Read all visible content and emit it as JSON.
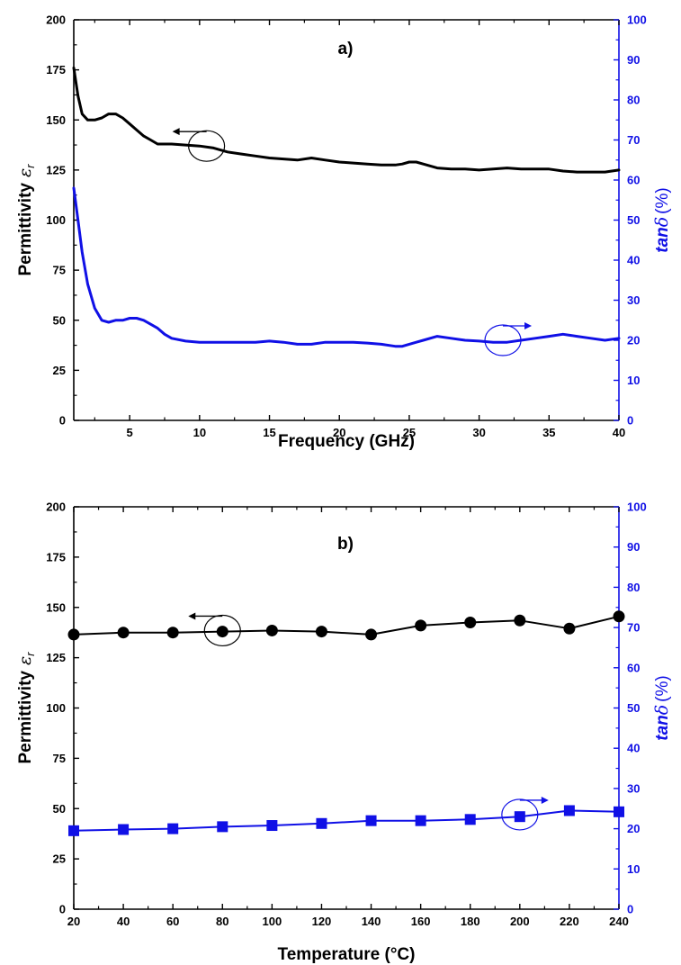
{
  "colors": {
    "primary": "#000000",
    "secondary": "#1010e6"
  },
  "chart_data": [
    {
      "type": "line",
      "panel_label": "a)",
      "xlabel": "Frequency (GHz)",
      "ylabel": "Permittivity",
      "ylabel_symbol": "ε",
      "ylabel_sub": "r",
      "y2label": "tan",
      "y2label_symbol": "δ",
      "y2label_unit": "(%)",
      "xlim": [
        1,
        40
      ],
      "ylim": [
        0,
        200
      ],
      "y2lim": [
        0,
        100
      ],
      "x_ticks": [
        5,
        10,
        15,
        20,
        25,
        30,
        35,
        40
      ],
      "y_ticks": [
        0,
        25,
        50,
        75,
        100,
        125,
        150,
        175,
        200
      ],
      "y2_ticks": [
        0,
        10,
        20,
        30,
        40,
        50,
        60,
        70,
        80,
        90,
        100
      ],
      "legend": "none",
      "grid": false,
      "series": [
        {
          "axis": "left",
          "color": "#000000",
          "x": [
            1,
            1.3,
            1.6,
            2,
            2.5,
            3,
            3.5,
            4,
            4.5,
            5,
            5.5,
            6,
            6.5,
            7,
            7.5,
            8,
            9,
            10,
            11,
            12,
            13,
            14,
            15,
            16,
            17,
            18,
            19,
            20,
            21,
            22,
            23,
            24,
            24.5,
            25,
            25.5,
            26,
            27,
            28,
            29,
            30,
            31,
            32,
            33,
            34,
            35,
            36,
            37,
            38,
            39,
            40
          ],
          "values": [
            176,
            162,
            153,
            150,
            150,
            151,
            153,
            153,
            151,
            148,
            145,
            142,
            140,
            138,
            138,
            138,
            137.5,
            137,
            136,
            134,
            133,
            132,
            131,
            130.5,
            130,
            131,
            130,
            129,
            128.5,
            128,
            127.5,
            127.5,
            128,
            129,
            129,
            128,
            126,
            125.5,
            125.5,
            125,
            125.5,
            126,
            125.5,
            125.5,
            125.5,
            124.5,
            124,
            124,
            124,
            125
          ]
        },
        {
          "axis": "right",
          "color": "#1010e6",
          "x": [
            1,
            1.3,
            1.6,
            2,
            2.5,
            3,
            3.5,
            4,
            4.5,
            5,
            5.5,
            6,
            6.5,
            7,
            7.5,
            8,
            9,
            10,
            11,
            12,
            13,
            14,
            15,
            16,
            17,
            18,
            19,
            20,
            21,
            22,
            23,
            24,
            24.5,
            25,
            25.5,
            26,
            27,
            28,
            29,
            30,
            31,
            32,
            33,
            34,
            35,
            36,
            37,
            38,
            39,
            40
          ],
          "values": [
            58,
            50,
            42,
            34,
            28,
            25,
            24.5,
            25,
            25,
            25.5,
            25.5,
            25,
            24,
            23,
            21.5,
            20.5,
            19.8,
            19.5,
            19.5,
            19.5,
            19.5,
            19.5,
            19.8,
            19.5,
            19,
            19,
            19.5,
            19.5,
            19.5,
            19.3,
            19,
            18.5,
            18.5,
            19,
            19.5,
            20,
            21,
            20.5,
            20,
            19.8,
            19.5,
            19.5,
            20,
            20.5,
            21,
            21.5,
            21,
            20.5,
            20,
            20.5
          ]
        }
      ],
      "annotations": [
        {
          "target": "left",
          "arrow": "left",
          "x": 10.5,
          "y": 137
        },
        {
          "target": "right",
          "arrow": "right",
          "x": 31.7,
          "y": 20
        }
      ]
    },
    {
      "type": "line",
      "panel_label": "b)",
      "xlabel": "Temperature (°C)",
      "ylabel": "Permittivity",
      "ylabel_symbol": "ε",
      "ylabel_sub": "r",
      "y2label": "tan",
      "y2label_symbol": "δ",
      "y2label_unit": "(%)",
      "xlim": [
        20,
        240
      ],
      "ylim": [
        0,
        200
      ],
      "y2lim": [
        0,
        100
      ],
      "x_ticks": [
        20,
        40,
        60,
        80,
        100,
        120,
        140,
        160,
        180,
        200,
        220,
        240
      ],
      "y_ticks": [
        0,
        25,
        50,
        75,
        100,
        125,
        150,
        175,
        200
      ],
      "y2_ticks": [
        0,
        10,
        20,
        30,
        40,
        50,
        60,
        70,
        80,
        90,
        100
      ],
      "legend": "none",
      "grid": false,
      "series": [
        {
          "axis": "left",
          "color": "#000000",
          "marker": "circle",
          "x": [
            20,
            40,
            60,
            80,
            100,
            120,
            140,
            160,
            180,
            200,
            220,
            240
          ],
          "values": [
            136.5,
            137.5,
            137.5,
            138,
            138.5,
            138,
            136.5,
            141,
            142.5,
            143.5,
            139.5,
            145.5
          ]
        },
        {
          "axis": "right",
          "color": "#1010e6",
          "marker": "square",
          "x": [
            20,
            40,
            60,
            80,
            100,
            120,
            140,
            160,
            180,
            200,
            220,
            240
          ],
          "values": [
            19.5,
            19.8,
            20,
            20.5,
            20.8,
            21.3,
            22,
            22,
            22.3,
            23,
            24.5,
            24.2
          ]
        }
      ],
      "annotations": [
        {
          "target": "left",
          "arrow": "left",
          "x": 80,
          "y": 138.5
        },
        {
          "target": "right",
          "arrow": "right",
          "x": 200,
          "y": 23.5
        }
      ]
    }
  ]
}
